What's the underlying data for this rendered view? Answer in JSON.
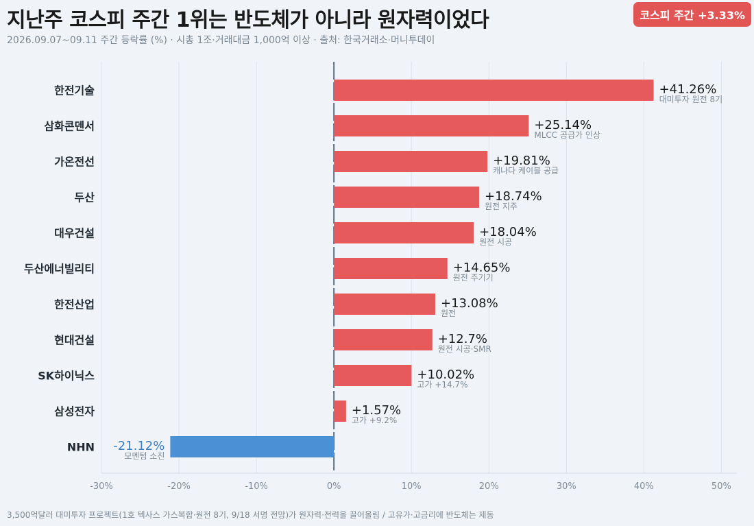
{
  "title": "지난주 코스피 주간 1위는 반도체가 아니라 원자력이었다",
  "subtitle": "2026.09.07~09.11 주간 등락률 (%)  ·  시총 1조·거래대금 1,000억 이상  ·  출처: 한국거래소·머니투데이",
  "badge": "코스피 주간 +3.33%",
  "footer": "3,500억달러 대미투자 프로젝트(1호 텍사스 가스복합·원전 8기, 9/18 서명 전망)가 원자력·전력을 끌어올림 / 고유가·고금리에 반도체는 제동",
  "colors": {
    "positive": "#e65a5c",
    "negative": "#4a90d4",
    "negative_label": "#3a7fc0",
    "background": "#f0f4f8"
  },
  "chart_data": {
    "type": "bar",
    "orientation": "horizontal",
    "categories": [
      "한전기술",
      "삼화콘덴서",
      "가온전선",
      "두산",
      "대우건설",
      "두산에너빌리티",
      "한전산업",
      "현대건설",
      "SK하이닉스",
      "삼성전자",
      "NHN"
    ],
    "values": [
      41.26,
      25.14,
      19.81,
      18.74,
      18.04,
      14.65,
      13.08,
      12.7,
      10.02,
      1.57,
      -21.12
    ],
    "value_labels": [
      "+41.26%",
      "+25.14%",
      "+19.81%",
      "+18.74%",
      "+18.04%",
      "+14.65%",
      "+13.08%",
      "+12.7%",
      "+10.02%",
      "+1.57%",
      "-21.12%"
    ],
    "annotations": [
      "대미투자 원전 8기",
      "MLCC 공급가 인상",
      "캐나다 케이블 공급",
      "원전 지주",
      "원전 시공",
      "원전 주기기",
      "원전",
      "원전 시공·SMR",
      "고가 +14.7%",
      "고가 +9.2%",
      "모멘텀 소진"
    ],
    "xlim": [
      -30,
      52
    ],
    "xticks": [
      -30,
      -20,
      -10,
      0,
      10,
      20,
      30,
      40,
      50
    ],
    "xtick_labels": [
      "-30%",
      "-20%",
      "-10%",
      "0%",
      "10%",
      "20%",
      "30%",
      "40%",
      "50%"
    ],
    "grid": true,
    "title": "",
    "xlabel": "",
    "ylabel": ""
  }
}
